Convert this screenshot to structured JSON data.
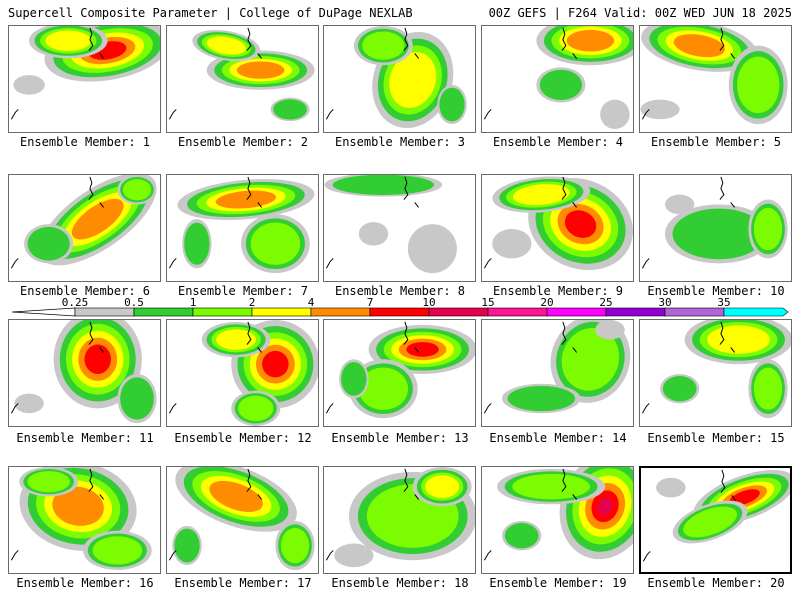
{
  "header": {
    "left_title": "Supercell Composite Parameter | College of DuPage NEXLAB",
    "right_title": "00Z GEFS | F264 Valid: 00Z WED JUN 18 2025"
  },
  "legend": {
    "ticks": [
      "0.25",
      "0.5",
      "1",
      "2",
      "4",
      "7",
      "10",
      "15",
      "20",
      "25",
      "30",
      "35"
    ],
    "colors": [
      "#c8c8c8",
      "#32cd32",
      "#7cfc00",
      "#ffff00",
      "#ff8c00",
      "#ff0000",
      "#e60050",
      "#ff1493",
      "#ff00ff",
      "#9400d3",
      "#b066d9",
      "#00ffff"
    ]
  },
  "panels": [
    {
      "label": "Ensemble Member: 1"
    },
    {
      "label": "Ensemble Member: 2"
    },
    {
      "label": "Ensemble Member: 3"
    },
    {
      "label": "Ensemble Member: 4"
    },
    {
      "label": "Ensemble Member: 5"
    },
    {
      "label": "Ensemble Member: 6"
    },
    {
      "label": "Ensemble Member: 7"
    },
    {
      "label": "Ensemble Member: 8"
    },
    {
      "label": "Ensemble Member: 9"
    },
    {
      "label": "Ensemble Member: 10"
    },
    {
      "label": "Ensemble Member: 11"
    },
    {
      "label": "Ensemble Member: 12"
    },
    {
      "label": "Ensemble Member: 13"
    },
    {
      "label": "Ensemble Member: 14"
    },
    {
      "label": "Ensemble Member: 15"
    },
    {
      "label": "Ensemble Member: 16"
    },
    {
      "label": "Ensemble Member: 17"
    },
    {
      "label": "Ensemble Member: 18"
    },
    {
      "label": "Ensemble Member: 19"
    },
    {
      "label": "Ensemble Member: 20"
    }
  ]
}
